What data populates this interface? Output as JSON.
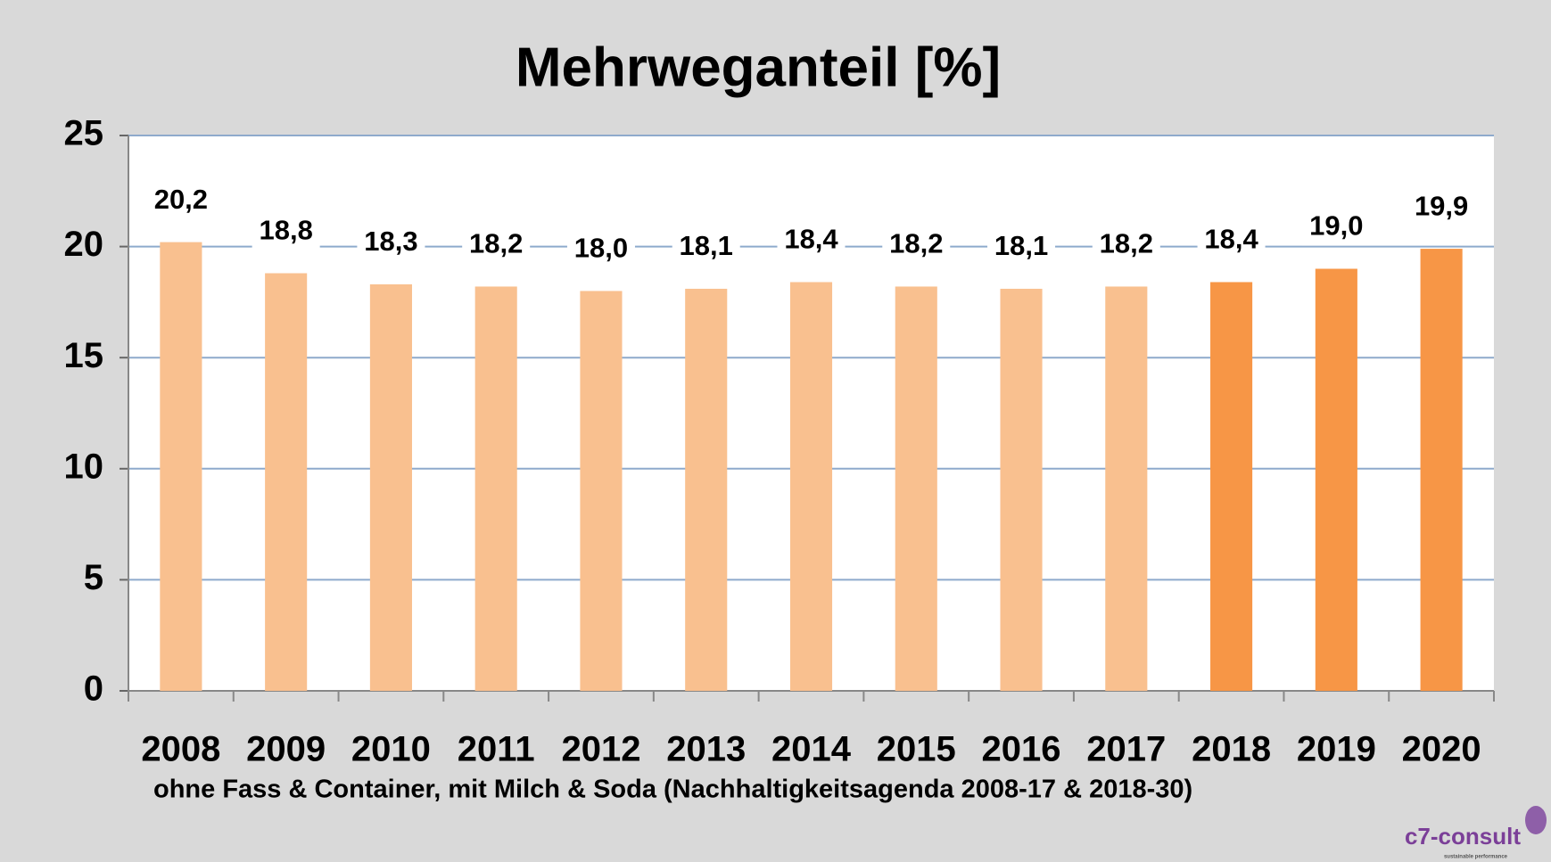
{
  "chart_data": {
    "type": "bar",
    "title": "Mehrweganteil [%]",
    "note": "ohne Fass & Container, mit Milch & Soda (Nachhaltigkeitsagenda 2008-17 & 2018-30)",
    "logo": "c7-consult",
    "logo_tagline": "sustainable performance",
    "categories": [
      "2008",
      "2009",
      "2010",
      "2011",
      "2012",
      "2013",
      "2014",
      "2015",
      "2016",
      "2017",
      "2018",
      "2019",
      "2020"
    ],
    "values": [
      20.2,
      18.8,
      18.3,
      18.2,
      18.0,
      18.1,
      18.4,
      18.2,
      18.1,
      18.2,
      18.4,
      19.0,
      19.9
    ],
    "value_labels": [
      "20,2",
      "18,8",
      "18,3",
      "18,2",
      "18,0",
      "18,1",
      "18,4",
      "18,2",
      "18,1",
      "18,2",
      "18,4",
      "19,0",
      "19,9"
    ],
    "colors": [
      "#f9c08f",
      "#f9c08f",
      "#f9c08f",
      "#f9c08f",
      "#f9c08f",
      "#f9c08f",
      "#f9c08f",
      "#f9c08f",
      "#f9c08f",
      "#f9c08f",
      "#f79646",
      "#f79646",
      "#f79646"
    ],
    "ylim": [
      0,
      25
    ],
    "yticks": [
      0,
      5,
      10,
      15,
      20,
      25
    ],
    "grid": true
  }
}
